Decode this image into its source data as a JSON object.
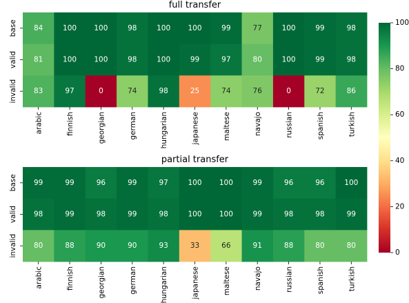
{
  "chart_data": {
    "colormap": {
      "name": "RdYlGn",
      "stops": [
        "#a50026",
        "#d73027",
        "#f46d43",
        "#fdae61",
        "#fee08b",
        "#ffffbf",
        "#d9ef8b",
        "#a6d96a",
        "#66bd63",
        "#1a9850",
        "#006837"
      ],
      "vmin": 0,
      "vmax": 100,
      "ticks": [
        "0",
        "20",
        "40",
        "60",
        "80",
        "100"
      ],
      "dark_text_color": "#262626",
      "light_text_color": "#ffffff"
    },
    "charts": [
      {
        "type": "heatmap",
        "title": "full transfer",
        "columns": [
          "arabic",
          "finnish",
          "georgian",
          "german",
          "hungarian",
          "japanese",
          "maltese",
          "navajo",
          "russian",
          "spanish",
          "turkish"
        ],
        "rows": [
          "base",
          "valid",
          "invalid"
        ],
        "values": [
          [
            84,
            100,
            100,
            98,
            100,
            100,
            99,
            77,
            100,
            99,
            98
          ],
          [
            81,
            100,
            100,
            98,
            100,
            99,
            97,
            80,
            100,
            99,
            98
          ],
          [
            83,
            97,
            0,
            74,
            98,
            25,
            74,
            76,
            0,
            72,
            86
          ]
        ]
      },
      {
        "type": "heatmap",
        "title": "partial transfer",
        "columns": [
          "arabic",
          "finnish",
          "georgian",
          "german",
          "hungarian",
          "japanese",
          "maltese",
          "navajo",
          "russian",
          "spanish",
          "turkish"
        ],
        "rows": [
          "base",
          "valid",
          "invalid"
        ],
        "values": [
          [
            99,
            99,
            96,
            99,
            97,
            100,
            100,
            99,
            96,
            96,
            100
          ],
          [
            98,
            99,
            98,
            99,
            98,
            100,
            100,
            99,
            98,
            98,
            99
          ],
          [
            80,
            88,
            90,
            90,
            93,
            33,
            66,
            91,
            88,
            80,
            80
          ]
        ]
      }
    ]
  }
}
